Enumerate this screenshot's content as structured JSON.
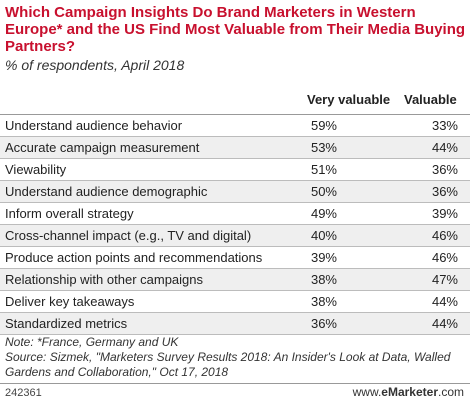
{
  "title": "Which Campaign Insights Do Brand Marketers in Western Europe* and the US Find Most Valuable from Their Media Buying Partners?",
  "subtitle": "% of respondents, April 2018",
  "columns": [
    "Very valuable",
    "Valuable"
  ],
  "chart_data": {
    "type": "table",
    "columns": [
      "Very valuable",
      "Valuable"
    ],
    "rows": [
      {
        "label": "Understand audience behavior",
        "very_valuable": "59%",
        "valuable": "33%"
      },
      {
        "label": "Accurate campaign measurement",
        "very_valuable": "53%",
        "valuable": "44%"
      },
      {
        "label": "Viewability",
        "very_valuable": "51%",
        "valuable": "36%"
      },
      {
        "label": "Understand audience demographic",
        "very_valuable": "50%",
        "valuable": "36%"
      },
      {
        "label": "Inform overall strategy",
        "very_valuable": "49%",
        "valuable": "39%"
      },
      {
        "label": "Cross-channel impact (e.g., TV and digital)",
        "very_valuable": "40%",
        "valuable": "46%"
      },
      {
        "label": "Produce action points and recommendations",
        "very_valuable": "39%",
        "valuable": "46%"
      },
      {
        "label": "Relationship with other campaigns",
        "very_valuable": "38%",
        "valuable": "47%"
      },
      {
        "label": "Deliver key takeaways",
        "very_valuable": "38%",
        "valuable": "44%"
      },
      {
        "label": "Standardized metrics",
        "very_valuable": "36%",
        "valuable": "44%"
      }
    ]
  },
  "note": "Note: *France, Germany and UK",
  "source": "Source: Sizmek, \"Marketers Survey Results 2018: An Insider's Look at Data, Walled Gardens and Collaboration,\" Oct 17, 2018",
  "chart_id": "242361",
  "brand": {
    "prefix": "www.",
    "name": "eMarketer",
    "suffix": ".com"
  }
}
